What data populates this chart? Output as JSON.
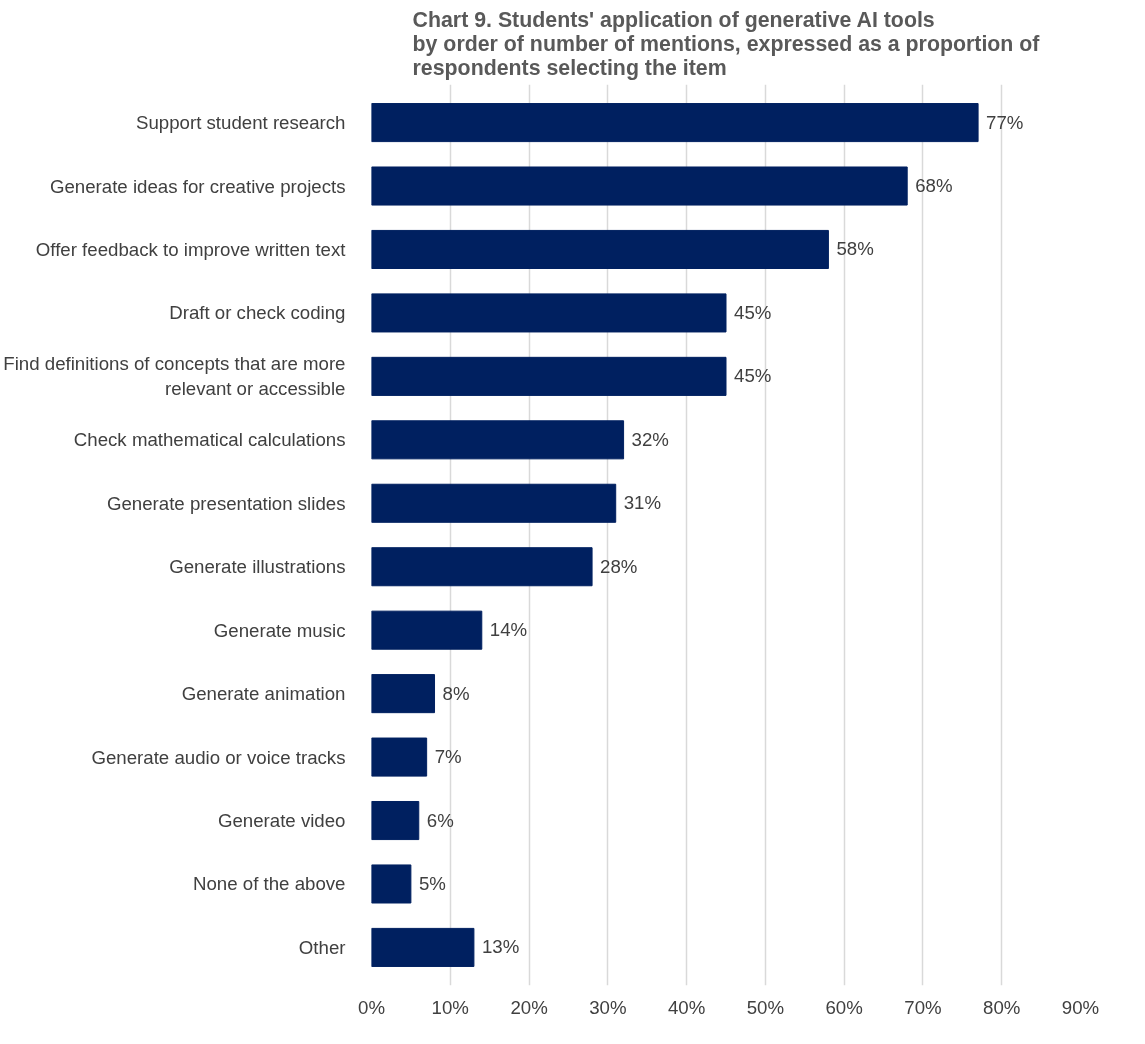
{
  "chart_data": {
    "type": "bar",
    "orientation": "horizontal",
    "title": "Chart 9. Students' application of generative AI tools\nby order of number of mentions, expressed as a proportion of\nrespondents selecting the item",
    "categories": [
      "Support student research",
      "Generate ideas for creative projects",
      "Offer feedback to improve written text",
      "Draft or check coding",
      "Find definitions of concepts that are more relevant or accessible",
      "Check mathematical calculations",
      "Generate presentation slides",
      "Generate illustrations",
      "Generate music",
      "Generate animation",
      "Generate audio or voice tracks",
      "Generate video",
      "None of the above",
      "Other"
    ],
    "values": [
      77,
      68,
      58,
      45,
      45,
      32,
      31,
      28,
      14,
      8,
      7,
      6,
      5,
      13
    ],
    "value_labels": [
      "77%",
      "68%",
      "58%",
      "45%",
      "45%",
      "32%",
      "31%",
      "28%",
      "14%",
      "8%",
      "7%",
      "6%",
      "5%",
      "13%"
    ],
    "color": "#002060",
    "xlim": [
      0,
      90
    ],
    "xticks": [
      {
        "value": 0,
        "label": "0%"
      },
      {
        "value": 10,
        "label": "10%"
      },
      {
        "value": 20,
        "label": "20%"
      },
      {
        "value": 30,
        "label": "30%"
      },
      {
        "value": 40,
        "label": "40%"
      },
      {
        "value": 50,
        "label": "50%"
      },
      {
        "value": 60,
        "label": "60%"
      },
      {
        "value": 70,
        "label": "70%"
      },
      {
        "value": 80,
        "label": "80%"
      },
      {
        "value": 90,
        "label": "90%"
      }
    ],
    "grid": "x"
  }
}
